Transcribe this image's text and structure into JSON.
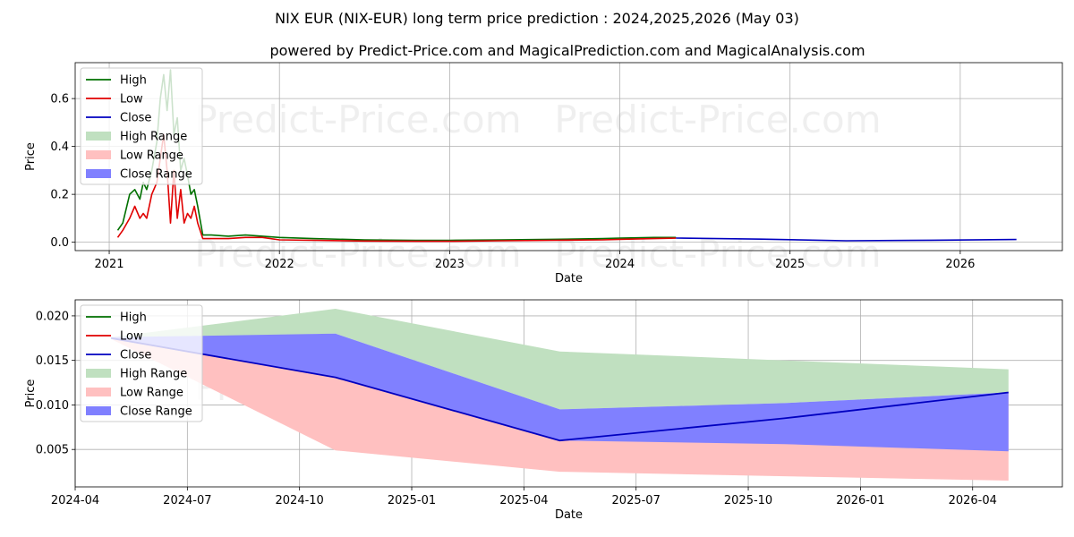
{
  "title": "NIX EUR (NIX-EUR) long term price prediction : 2024,2025,2026 (May 03)",
  "subtitle": "powered by Predict-Price.com and MagicalPrediction.com and MagicalAnalysis.com",
  "watermark": "Predict-Price.com",
  "colors": {
    "high": "#007000",
    "low": "#e00000",
    "close": "#0000c0",
    "high_range": "#c0e0c0",
    "low_range": "#ffc0c0",
    "close_range": "#8080ff"
  },
  "legend": [
    "High",
    "Low",
    "Close",
    "High Range",
    "Low Range",
    "Close Range"
  ],
  "chart_data": [
    {
      "type": "line",
      "xlabel": "Date",
      "ylabel": "Price",
      "xlim": [
        2020.8,
        2026.6
      ],
      "ylim": [
        -0.035,
        0.75
      ],
      "xticks": [
        2021,
        2022,
        2023,
        2024,
        2025,
        2026
      ],
      "xtick_labels": [
        "2021",
        "2022",
        "2023",
        "2024",
        "2025",
        "2026"
      ],
      "yticks": [
        0.0,
        0.2,
        0.4,
        0.6
      ],
      "ytick_labels": [
        "0.0",
        "0.2",
        "0.4",
        "0.6"
      ],
      "grid": true,
      "legend_position": "top-left",
      "series": [
        {
          "name": "High",
          "x": [
            2021.05,
            2021.08,
            2021.12,
            2021.15,
            2021.18,
            2021.2,
            2021.22,
            2021.25,
            2021.28,
            2021.3,
            2021.32,
            2021.34,
            2021.36,
            2021.38,
            2021.4,
            2021.42,
            2021.44,
            2021.46,
            2021.48,
            2021.5,
            2021.52,
            2021.55,
            2021.6,
            2021.7,
            2021.8,
            2021.9,
            2022.0,
            2022.2,
            2022.5,
            2022.8,
            2023.0,
            2023.3,
            2023.6,
            2023.9,
            2024.0,
            2024.2,
            2024.33
          ],
          "values": [
            0.05,
            0.08,
            0.2,
            0.22,
            0.18,
            0.25,
            0.22,
            0.3,
            0.42,
            0.6,
            0.7,
            0.55,
            0.72,
            0.45,
            0.52,
            0.3,
            0.35,
            0.28,
            0.2,
            0.22,
            0.15,
            0.03,
            0.03,
            0.025,
            0.03,
            0.025,
            0.02,
            0.015,
            0.01,
            0.008,
            0.008,
            0.01,
            0.012,
            0.015,
            0.017,
            0.02,
            0.02
          ]
        },
        {
          "name": "Low",
          "x": [
            2021.05,
            2021.08,
            2021.12,
            2021.15,
            2021.18,
            2021.2,
            2021.22,
            2021.25,
            2021.28,
            2021.3,
            2021.32,
            2021.34,
            2021.36,
            2021.38,
            2021.4,
            2021.42,
            2021.44,
            2021.46,
            2021.48,
            2021.5,
            2021.52,
            2021.55,
            2021.6,
            2021.7,
            2021.8,
            2021.9,
            2022.0,
            2022.2,
            2022.5,
            2022.8,
            2023.0,
            2023.3,
            2023.6,
            2023.9,
            2024.0,
            2024.2,
            2024.33
          ],
          "values": [
            0.02,
            0.05,
            0.1,
            0.15,
            0.1,
            0.12,
            0.1,
            0.2,
            0.25,
            0.35,
            0.45,
            0.3,
            0.08,
            0.3,
            0.1,
            0.22,
            0.08,
            0.12,
            0.1,
            0.15,
            0.08,
            0.015,
            0.015,
            0.015,
            0.02,
            0.02,
            0.01,
            0.008,
            0.005,
            0.004,
            0.004,
            0.006,
            0.008,
            0.01,
            0.012,
            0.015,
            0.017
          ]
        },
        {
          "name": "Close",
          "x": [
            2024.33,
            2024.83,
            2025.33,
            2025.83,
            2026.33
          ],
          "values": [
            0.0175,
            0.013,
            0.006,
            0.0085,
            0.0114
          ]
        }
      ]
    },
    {
      "type": "area",
      "xlabel": "Date",
      "ylabel": "Price",
      "xlim": [
        2024.25,
        2026.45
      ],
      "ylim": [
        0.0008,
        0.0218
      ],
      "xticks": [
        2024.25,
        2024.5,
        2024.75,
        2025.0,
        2025.25,
        2025.5,
        2025.75,
        2026.0,
        2026.25
      ],
      "xtick_labels": [
        "2024-04",
        "2024-07",
        "2024-10",
        "2025-01",
        "2025-04",
        "2025-07",
        "2025-10",
        "2026-01",
        "2026-04"
      ],
      "yticks": [
        0.005,
        0.01,
        0.015,
        0.02
      ],
      "ytick_labels": [
        "0.005",
        "0.010",
        "0.015",
        "0.020"
      ],
      "grid": true,
      "legend_position": "top-left",
      "x": [
        2024.33,
        2024.83,
        2025.33,
        2025.83,
        2026.33
      ],
      "series": [
        {
          "name": "High Range",
          "upper": [
            0.0176,
            0.0208,
            0.016,
            0.015,
            0.014
          ],
          "lower": [
            0.0174,
            0.018,
            0.0095,
            0.0102,
            0.0114
          ]
        },
        {
          "name": "Low Range",
          "upper": [
            0.0176,
            0.0131,
            0.006,
            0.0085,
            0.0114
          ],
          "lower": [
            0.0174,
            0.0049,
            0.0025,
            0.002,
            0.0015
          ]
        },
        {
          "name": "Close Range",
          "upper": [
            0.0176,
            0.018,
            0.0095,
            0.0102,
            0.0114
          ],
          "lower": [
            0.0174,
            0.0131,
            0.006,
            0.0056,
            0.0048
          ]
        },
        {
          "name": "Close",
          "values": [
            0.0175,
            0.0131,
            0.006,
            0.0085,
            0.0114
          ]
        }
      ]
    }
  ]
}
